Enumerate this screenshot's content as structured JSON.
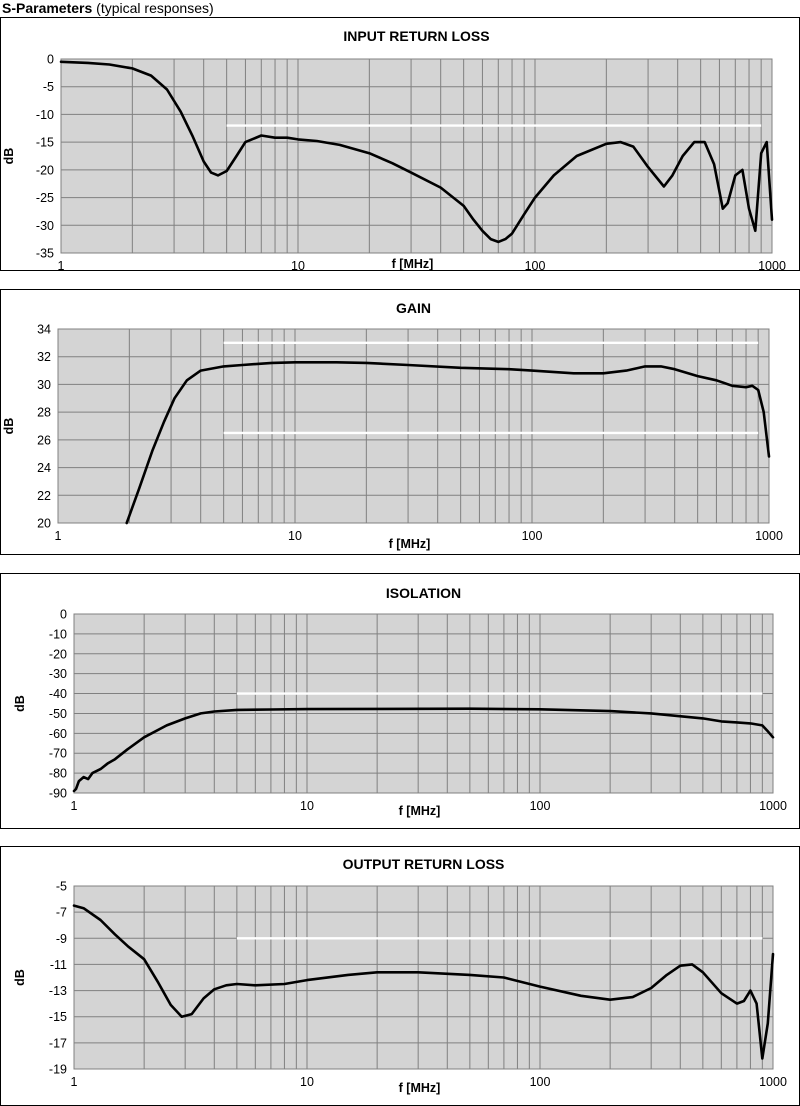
{
  "page": {
    "heading_bold": "S-Parameters",
    "heading_rest": "(typical responses)"
  },
  "chart_data": [
    {
      "type": "line",
      "title": "INPUT RETURN LOSS",
      "xlabel": "f [MHz]",
      "ylabel": "dB",
      "xscale": "log",
      "xlim": [
        1,
        1000
      ],
      "ylim": [
        -35,
        0
      ],
      "yticks": [
        0,
        -5,
        -10,
        -15,
        -20,
        -25,
        -30,
        -35
      ],
      "xticks": [
        1,
        10,
        100,
        1000
      ],
      "grid": true,
      "colors": {
        "plot_bg": "#d4d4d4",
        "grid": "#808080",
        "line": "#000000",
        "limit": "#ffffff"
      },
      "series": [
        {
          "x": [
            1,
            1.3,
            1.6,
            2,
            2.4,
            2.8,
            3.2,
            3.6,
            4,
            4.3,
            4.6,
            5,
            5.5,
            6,
            7,
            8,
            9,
            10,
            12,
            15,
            20,
            25,
            30,
            40,
            50,
            55,
            60,
            65,
            70,
            75,
            80,
            90,
            100,
            120,
            150,
            200,
            230,
            260,
            300,
            350,
            380,
            420,
            470,
            520,
            570,
            620,
            650,
            700,
            750,
            800,
            850,
            900,
            950,
            1000
          ],
          "y": [
            -0.5,
            -0.7,
            -1,
            -1.7,
            -3,
            -5.5,
            -9.5,
            -14,
            -18.5,
            -20.5,
            -21,
            -20.2,
            -17.5,
            -15,
            -13.8,
            -14.2,
            -14.2,
            -14.5,
            -14.8,
            -15.5,
            -17,
            -18.8,
            -20.5,
            -23.2,
            -26.5,
            -29,
            -31,
            -32.5,
            -33,
            -32.5,
            -31.5,
            -28,
            -25,
            -21,
            -17.5,
            -15.3,
            -15,
            -15.8,
            -19.5,
            -23,
            -21,
            -17.5,
            -15,
            -15,
            -19,
            -27,
            -26,
            -21,
            -20,
            -27,
            -31,
            -17,
            -15,
            -29
          ]
        }
      ],
      "limit_lines": [
        {
          "x": [
            5,
            900
          ],
          "y": -12
        }
      ]
    },
    {
      "type": "line",
      "title": "GAIN",
      "xlabel": "f [MHz]",
      "ylabel": "dB",
      "xscale": "log",
      "xlim": [
        1,
        1000
      ],
      "ylim": [
        20,
        34
      ],
      "yticks": [
        34,
        32,
        30,
        28,
        26,
        24,
        22,
        20
      ],
      "xticks": [
        1,
        10,
        100,
        1000
      ],
      "grid": true,
      "colors": {
        "plot_bg": "#d4d4d4",
        "grid": "#808080",
        "line": "#000000",
        "limit": "#ffffff"
      },
      "series": [
        {
          "x": [
            1.95,
            2.2,
            2.5,
            2.8,
            3.1,
            3.5,
            4,
            5,
            6,
            8,
            10,
            15,
            20,
            30,
            50,
            80,
            100,
            150,
            200,
            250,
            300,
            350,
            400,
            500,
            600,
            700,
            800,
            850,
            900,
            950,
            1000
          ],
          "y": [
            20,
            22.5,
            25.2,
            27.3,
            29,
            30.3,
            31,
            31.3,
            31.4,
            31.55,
            31.6,
            31.6,
            31.55,
            31.4,
            31.2,
            31.1,
            31,
            30.8,
            30.8,
            31,
            31.3,
            31.3,
            31.1,
            30.6,
            30.3,
            29.9,
            29.8,
            29.9,
            29.6,
            28,
            24.8
          ]
        }
      ],
      "limit_lines": [
        {
          "x": [
            5,
            900
          ],
          "y": 33
        },
        {
          "x": [
            5,
            900
          ],
          "y": 26.5
        }
      ]
    },
    {
      "type": "line",
      "title": "ISOLATION",
      "xlabel": "f [MHz]",
      "ylabel": "dB",
      "xscale": "log",
      "xlim": [
        1,
        1000
      ],
      "ylim": [
        -90,
        0
      ],
      "yticks": [
        0,
        -10,
        -20,
        -30,
        -40,
        -50,
        -60,
        -70,
        -80,
        -90
      ],
      "xticks": [
        1,
        10,
        100,
        1000
      ],
      "grid": true,
      "colors": {
        "plot_bg": "#d4d4d4",
        "grid": "#808080",
        "line": "#000000",
        "limit": "#ffffff"
      },
      "series": [
        {
          "x": [
            1,
            1.02,
            1.05,
            1.1,
            1.15,
            1.2,
            1.3,
            1.4,
            1.5,
            1.7,
            2,
            2.5,
            3,
            3.5,
            4,
            5,
            7,
            10,
            20,
            50,
            100,
            200,
            300,
            500,
            600,
            700,
            800,
            900,
            950,
            1000
          ],
          "y": [
            -89,
            -88,
            -84,
            -82,
            -83,
            -80,
            -78,
            -75,
            -73,
            -68,
            -62,
            -56,
            -52.5,
            -50,
            -49,
            -48.2,
            -48,
            -47.8,
            -47.7,
            -47.6,
            -47.9,
            -48.8,
            -50,
            -52.5,
            -54,
            -54.5,
            -55,
            -56,
            -59,
            -62
          ]
        }
      ],
      "limit_lines": [
        {
          "x": [
            5,
            900
          ],
          "y": -40
        }
      ]
    },
    {
      "type": "line",
      "title": "OUTPUT RETURN LOSS",
      "xlabel": "f [MHz]",
      "ylabel": "dB",
      "xscale": "log",
      "xlim": [
        1,
        1000
      ],
      "ylim": [
        -19,
        -5
      ],
      "yticks": [
        -5,
        -7,
        -9,
        -11,
        -13,
        -15,
        -17,
        -19
      ],
      "xticks": [
        1,
        10,
        100,
        1000
      ],
      "grid": true,
      "colors": {
        "plot_bg": "#d4d4d4",
        "grid": "#808080",
        "line": "#000000",
        "limit": "#ffffff"
      },
      "series": [
        {
          "x": [
            1,
            1.1,
            1.3,
            1.5,
            1.7,
            2,
            2.3,
            2.6,
            2.9,
            3.2,
            3.6,
            4,
            4.5,
            5,
            6,
            8,
            10,
            15,
            20,
            30,
            50,
            70,
            100,
            150,
            200,
            250,
            300,
            350,
            400,
            450,
            500,
            600,
            700,
            750,
            800,
            850,
            900,
            950,
            1000
          ],
          "y": [
            -6.5,
            -6.7,
            -7.6,
            -8.7,
            -9.6,
            -10.6,
            -12.4,
            -14.1,
            -15,
            -14.8,
            -13.6,
            -12.9,
            -12.6,
            -12.5,
            -12.6,
            -12.5,
            -12.2,
            -11.8,
            -11.6,
            -11.6,
            -11.8,
            -12,
            -12.7,
            -13.4,
            -13.7,
            -13.5,
            -12.8,
            -11.8,
            -11.1,
            -11,
            -11.6,
            -13.2,
            -14,
            -13.8,
            -13,
            -14,
            -18.2,
            -15.5,
            -10.2
          ]
        }
      ],
      "limit_lines": [
        {
          "x": [
            5,
            900
          ],
          "y": -9
        }
      ]
    }
  ]
}
